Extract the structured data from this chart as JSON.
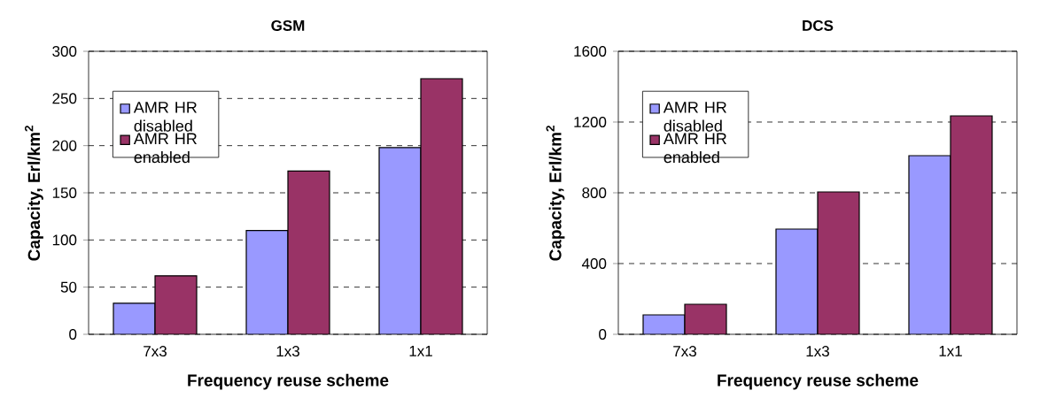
{
  "chart_data": [
    {
      "type": "bar",
      "title": "GSM",
      "xlabel": "Frequency reuse scheme",
      "ylabel": "Capacity, Erl/km$^{2}$",
      "categories": [
        "7x3",
        "1x3",
        "1x1"
      ],
      "series": [
        {
          "name": "AMR HR disabled",
          "color": "#9999ff",
          "values": [
            33,
            110,
            198
          ]
        },
        {
          "name": "AMR HR enabled",
          "color": "#993366",
          "values": [
            62,
            173,
            271
          ]
        }
      ],
      "ylim": [
        0,
        300
      ],
      "yticks": [
        0,
        50,
        100,
        150,
        200,
        250,
        300
      ],
      "grid": "y",
      "legend": "top left"
    },
    {
      "type": "bar",
      "title": "DCS",
      "xlabel": "Frequency reuse scheme",
      "ylabel": "Capacity, Erl/km$^{2}$",
      "categories": [
        "7x3",
        "1x3",
        "1x1"
      ],
      "series": [
        {
          "name": "AMR HR disabled",
          "color": "#9999ff",
          "values": [
            110,
            595,
            1010
          ]
        },
        {
          "name": "AMR HR enabled",
          "color": "#993366",
          "values": [
            170,
            805,
            1235
          ]
        }
      ],
      "ylim": [
        0,
        1600
      ],
      "yticks": [
        0,
        400,
        800,
        1200,
        1600
      ],
      "grid": "y",
      "legend": "top left"
    }
  ]
}
